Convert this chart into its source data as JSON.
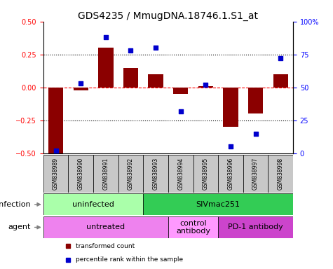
{
  "title": "GDS4235 / MmugDNA.18746.1.S1_at",
  "samples": [
    "GSM838989",
    "GSM838990",
    "GSM838991",
    "GSM838992",
    "GSM838993",
    "GSM838994",
    "GSM838995",
    "GSM838996",
    "GSM838997",
    "GSM838998"
  ],
  "transformed_count": [
    -0.5,
    -0.02,
    0.3,
    0.15,
    0.1,
    -0.05,
    0.01,
    -0.3,
    -0.2,
    0.1
  ],
  "percentile_rank": [
    2,
    53,
    88,
    78,
    80,
    32,
    52,
    5,
    15,
    72
  ],
  "bar_color": "#8B0000",
  "dot_color": "#0000CD",
  "ylim_left": [
    -0.5,
    0.5
  ],
  "ylim_right": [
    0,
    100
  ],
  "yticks_left": [
    -0.5,
    -0.25,
    0.0,
    0.25,
    0.5
  ],
  "yticks_right": [
    0,
    25,
    50,
    75,
    100
  ],
  "ytick_labels_right": [
    "0",
    "25",
    "50",
    "75",
    "100%"
  ],
  "hlines_dotted": [
    -0.25,
    0.25
  ],
  "hline_zero": 0.0,
  "infection_groups": [
    {
      "label": "uninfected",
      "start": 0,
      "end": 4,
      "color": "#AAFFAA"
    },
    {
      "label": "SIVmac251",
      "start": 4,
      "end": 10,
      "color": "#33CC55"
    }
  ],
  "agent_groups": [
    {
      "label": "untreated",
      "start": 0,
      "end": 5,
      "color": "#EE82EE"
    },
    {
      "label": "control\nantibody",
      "start": 5,
      "end": 7,
      "color": "#FF99FF"
    },
    {
      "label": "PD-1 antibody",
      "start": 7,
      "end": 10,
      "color": "#CC44CC"
    }
  ],
  "legend_items": [
    {
      "label": "transformed count",
      "color": "#8B0000"
    },
    {
      "label": "percentile rank within the sample",
      "color": "#0000CD"
    }
  ],
  "infection_label": "infection",
  "agent_label": "agent",
  "title_fontsize": 10,
  "tick_fontsize": 7,
  "label_fontsize": 8,
  "sample_box_color": "#C8C8C8"
}
